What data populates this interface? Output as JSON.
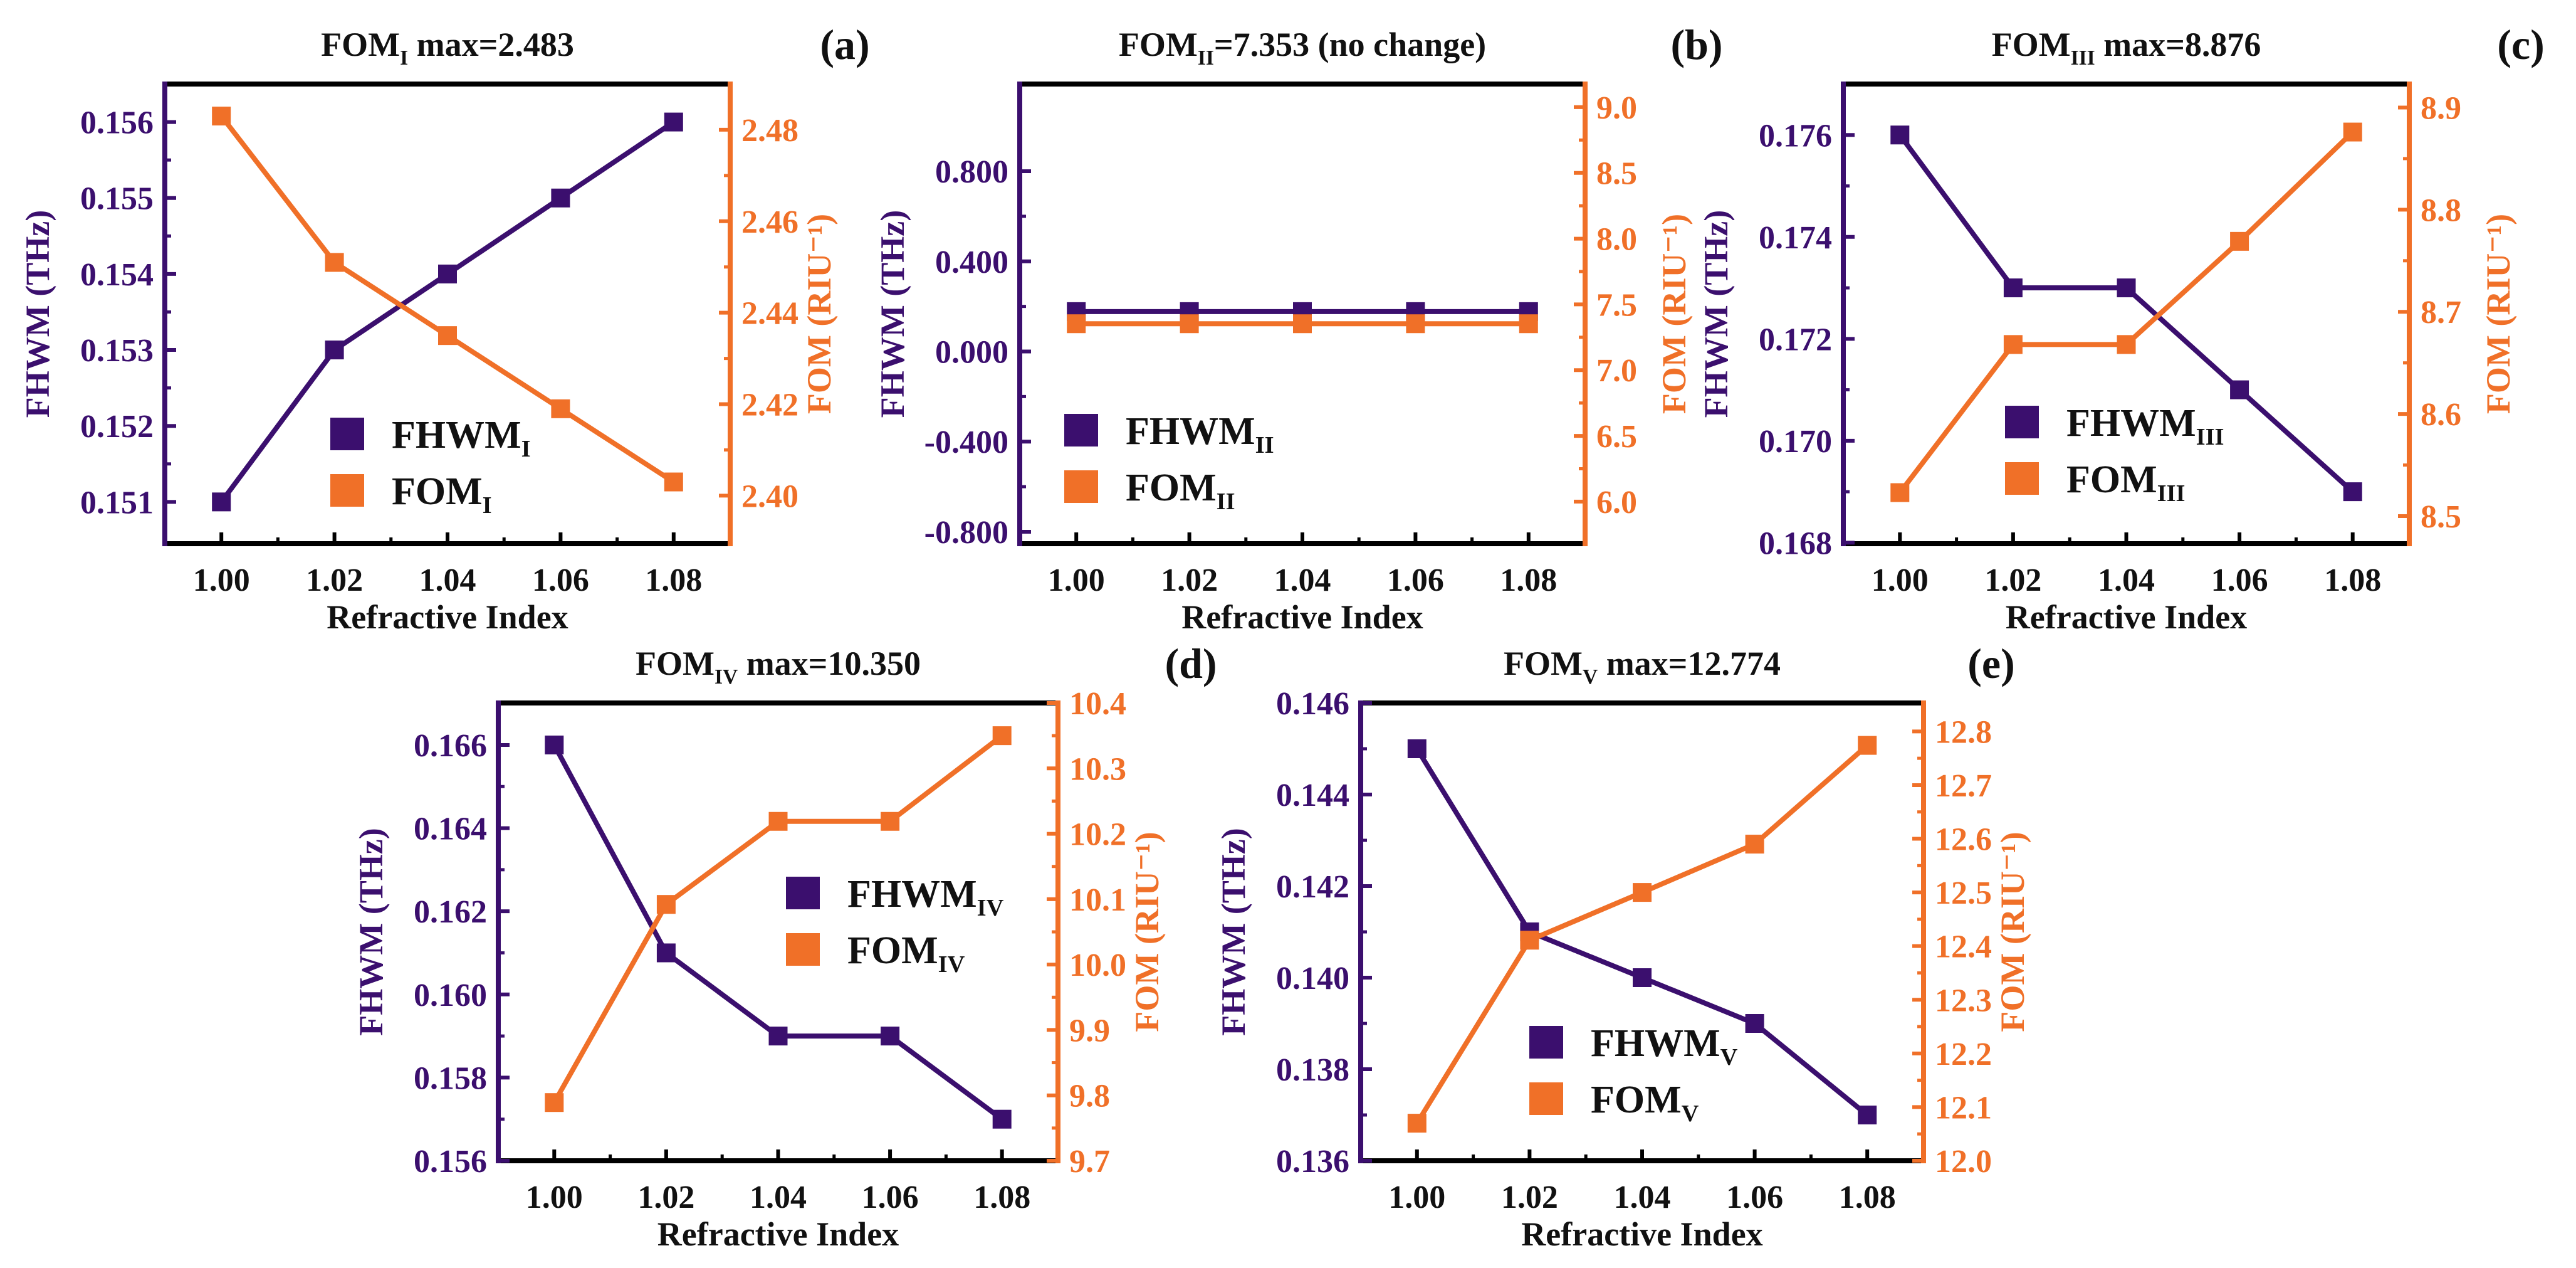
{
  "colors": {
    "fhwm": "#3b0f6e",
    "fom": "#f07028",
    "frame": "#000000"
  },
  "chart_data": [
    {
      "type": "line",
      "panel": "(a)",
      "title": {
        "main": "FOM",
        "sub": "I",
        "rest": " max=2.483"
      },
      "xlabel": "Refractive Index",
      "ylabel": "FHWM (THz)",
      "y2label": "FOM (RIU⁻¹)",
      "x": [
        1.0,
        1.02,
        1.04,
        1.06,
        1.08
      ],
      "xlim": [
        0.99,
        1.09
      ],
      "xticks": [
        1.0,
        1.02,
        1.04,
        1.06,
        1.08
      ],
      "series": [
        {
          "name": "FHWM",
          "sub": "I",
          "axis": "left",
          "values": [
            0.151,
            0.153,
            0.154,
            0.155,
            0.156
          ]
        },
        {
          "name": "FOM",
          "sub": "I",
          "axis": "right",
          "values": [
            2.483,
            2.451,
            2.435,
            2.419,
            2.403
          ]
        }
      ],
      "ylim": [
        0.15045,
        0.1565
      ],
      "yticks": [
        0.151,
        0.152,
        0.153,
        0.154,
        0.155,
        0.156
      ],
      "ydec": 3,
      "y2lim": [
        2.3895,
        2.49
      ],
      "y2ticks": [
        2.4,
        2.42,
        2.44,
        2.46,
        2.48
      ],
      "y2dec": 2,
      "legend": "lower-center"
    },
    {
      "type": "line",
      "panel": "(b)",
      "title": {
        "main": "FOM",
        "sub": "II",
        "rest": "=7.353 (no change)"
      },
      "xlabel": "Refractive Index",
      "ylabel": "FHWM (THz)",
      "y2label": "FOM (RIU⁻¹)",
      "x": [
        1.0,
        1.02,
        1.04,
        1.06,
        1.08
      ],
      "xlim": [
        0.99,
        1.09
      ],
      "xticks": [
        1.0,
        1.02,
        1.04,
        1.06,
        1.08
      ],
      "series": [
        {
          "name": "FHWM",
          "sub": "II",
          "axis": "left",
          "values": [
            0.177,
            0.177,
            0.177,
            0.177,
            0.177
          ]
        },
        {
          "name": "FOM",
          "sub": "II",
          "axis": "right",
          "values": [
            7.353,
            7.353,
            7.353,
            7.353,
            7.353
          ]
        }
      ],
      "ylim": [
        -0.853,
        1.187
      ],
      "yticks": [
        -0.8,
        -0.4,
        0.0,
        0.4,
        0.8
      ],
      "ydec": 3,
      "y2lim": [
        5.68,
        9.176
      ],
      "y2ticks": [
        6.0,
        6.5,
        7.0,
        7.5,
        8.0,
        8.5,
        9.0
      ],
      "y2dec": 1,
      "legend": "lower-left"
    },
    {
      "type": "line",
      "panel": "(c)",
      "title": {
        "main": "FOM",
        "sub": "III",
        "rest": " max=8.876"
      },
      "xlabel": "Refractive Index",
      "ylabel": "FHWM (THz)",
      "y2label": "FOM (RIU⁻¹)",
      "x": [
        1.0,
        1.02,
        1.04,
        1.06,
        1.08
      ],
      "xlim": [
        0.99,
        1.09
      ],
      "xticks": [
        1.0,
        1.02,
        1.04,
        1.06,
        1.08
      ],
      "series": [
        {
          "name": "FHWM",
          "sub": "III",
          "axis": "left",
          "values": [
            0.176,
            0.173,
            0.173,
            0.171,
            0.169
          ]
        },
        {
          "name": "FOM",
          "sub": "III",
          "axis": "right",
          "values": [
            8.523,
            8.668,
            8.668,
            8.769,
            8.876
          ]
        }
      ],
      "ylim": [
        0.16798,
        0.177
      ],
      "yticks": [
        0.168,
        0.17,
        0.172,
        0.174,
        0.176
      ],
      "ydec": 3,
      "y2lim": [
        8.473,
        8.923
      ],
      "y2ticks": [
        8.5,
        8.6,
        8.7,
        8.8,
        8.9
      ],
      "y2dec": 1,
      "legend": "lower-center"
    },
    {
      "type": "line",
      "panel": "(d)",
      "title": {
        "main": "FOM",
        "sub": "IV",
        "rest": " max=10.350"
      },
      "xlabel": "Refractive Index",
      "ylabel": "FHWM (THz)",
      "y2label": "FOM (RIU⁻¹)",
      "x": [
        1.0,
        1.02,
        1.04,
        1.06,
        1.08
      ],
      "xlim": [
        0.99,
        1.09
      ],
      "xticks": [
        1.0,
        1.02,
        1.04,
        1.06,
        1.08
      ],
      "series": [
        {
          "name": "FHWM",
          "sub": "IV",
          "axis": "left",
          "values": [
            0.166,
            0.161,
            0.159,
            0.159,
            0.157
          ]
        },
        {
          "name": "FOM",
          "sub": "IV",
          "axis": "right",
          "values": [
            9.789,
            10.092,
            10.219,
            10.219,
            10.35
          ]
        }
      ],
      "ylim": [
        0.156,
        0.16701
      ],
      "yticks": [
        0.156,
        0.158,
        0.16,
        0.162,
        0.164,
        0.166
      ],
      "ydec": 3,
      "y2lim": [
        9.7,
        10.4
      ],
      "y2ticks": [
        9.7,
        9.8,
        9.9,
        10.0,
        10.1,
        10.2,
        10.3,
        10.4
      ],
      "y2dec": 1,
      "legend": "center-right"
    },
    {
      "type": "line",
      "panel": "(e)",
      "title": {
        "main": "FOM",
        "sub": "V",
        "rest": " max=12.774"
      },
      "xlabel": "Refractive Index",
      "ylabel": "FHWM (THz)",
      "y2label": "FOM (RIU⁻¹)",
      "x": [
        1.0,
        1.02,
        1.04,
        1.06,
        1.08
      ],
      "xlim": [
        0.99,
        1.09
      ],
      "xticks": [
        1.0,
        1.02,
        1.04,
        1.06,
        1.08
      ],
      "series": [
        {
          "name": "FHWM",
          "sub": "V",
          "axis": "left",
          "values": [
            0.145,
            0.141,
            0.14,
            0.139,
            0.137
          ]
        },
        {
          "name": "FOM",
          "sub": "V",
          "axis": "right",
          "values": [
            12.07,
            12.411,
            12.5,
            12.59,
            12.774
          ]
        }
      ],
      "ylim": [
        0.136,
        0.146
      ],
      "yticks": [
        0.136,
        0.138,
        0.14,
        0.142,
        0.144,
        0.146
      ],
      "ydec": 3,
      "y2lim": [
        12.0,
        12.853
      ],
      "y2ticks": [
        12.0,
        12.1,
        12.2,
        12.3,
        12.4,
        12.5,
        12.6,
        12.7,
        12.8
      ],
      "y2dec": 1,
      "legend": "lower-center"
    }
  ]
}
